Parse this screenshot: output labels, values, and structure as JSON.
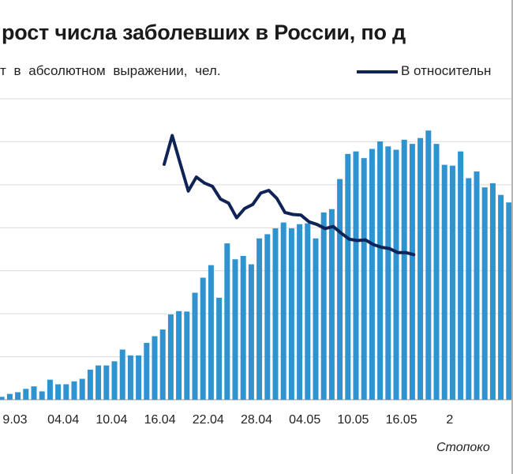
{
  "title": "рост числа заболевших в России, по д",
  "legend": {
    "bars_label": "т  в абсолютном  выражении,  чел.",
    "line_label": "В относительн"
  },
  "source": "Стопоко",
  "colors": {
    "bars": "#2e93cf",
    "line": "#0f2357",
    "grid": "#d9d9d9"
  },
  "chart_data": {
    "type": "bar",
    "x_tick_labels": [
      "9.03",
      "04.04",
      "10.04",
      "16.04",
      "22.04",
      "28.04",
      "04.05",
      "10.05",
      "16.05",
      "2"
    ],
    "grid": true,
    "bars": {
      "values": [
        350,
        350,
        700,
        900,
        1300,
        1600,
        1000,
        2400,
        1850,
        1850,
        2200,
        2500,
        3600,
        4100,
        4100,
        4600,
        6000,
        5300,
        5300,
        6800,
        7600,
        8400,
        10200,
        10600,
        10550,
        12800,
        14600,
        16100,
        12200,
        18700,
        16800,
        17200,
        16200,
        19300,
        19800,
        20500,
        21200,
        20500,
        21000,
        21100,
        19300,
        22400,
        22800,
        26400,
        29400,
        29700,
        28900,
        30000,
        30900,
        30300,
        29900,
        31100,
        30600,
        31300,
        32200,
        30600,
        28100,
        28000,
        29700,
        26500,
        27300,
        25400,
        25900,
        24500,
        23600
      ],
      "ylim": [
        0,
        36000
      ]
    },
    "line": {
      "start_index": 20,
      "values": [
        15.2,
        19.5,
        15.3,
        11.2,
        13.3,
        12.4,
        11.9,
        10.0,
        9.4,
        7.2,
        8.6,
        9.2,
        10.9,
        11.3,
        10.1,
        8.0,
        7.7,
        7.6,
        6.6,
        6.2,
        5.6,
        5.9,
        4.9,
        4.0,
        3.8,
        3.9,
        3.2,
        2.8,
        2.6,
        2.0,
        2.0,
        1.7
      ],
      "ylim": [
        -20,
        25
      ]
    }
  }
}
